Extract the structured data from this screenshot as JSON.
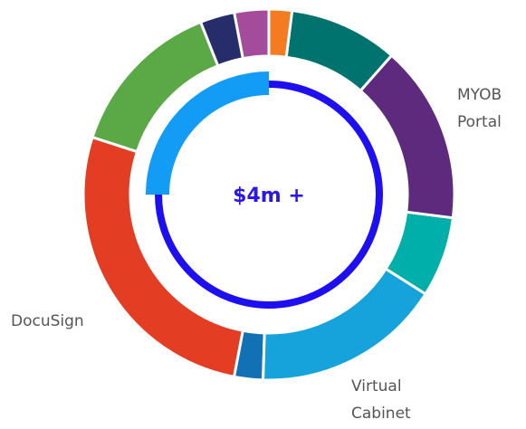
{
  "chart_data": {
    "type": "donut",
    "center_label": "$4m +",
    "categories": [
      null,
      null,
      "MYOB Portal",
      null,
      "Virtual Cabinet",
      null,
      "DocuSign",
      null,
      null,
      null
    ],
    "values": [
      2,
      9.5,
      15.5,
      7,
      16.5,
      2.5,
      27,
      14,
      3,
      3
    ],
    "colors": [
      "#f47b20",
      "#00736f",
      "#5e2a7e",
      "#00afa9",
      "#16a3db",
      "#1271b5",
      "#e33d24",
      "#5aa846",
      "#262d6a",
      "#a54b9c"
    ],
    "inner_progress": 25,
    "inner_ring_color": "#1e0ff0",
    "inner_progress_color": "#139cf5"
  }
}
